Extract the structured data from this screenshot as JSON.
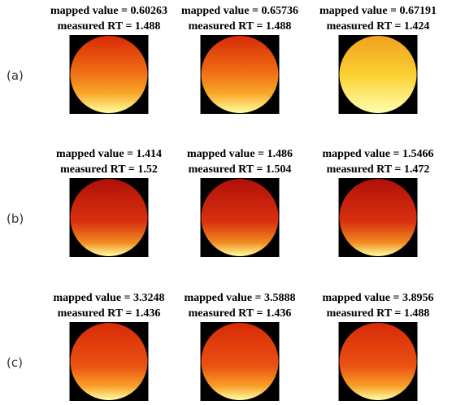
{
  "rows": [
    {
      "label": "(a)",
      "panels": [
        {
          "title": "mapped value = 0.60263",
          "subtitle": "measured RT = 1.488"
        },
        {
          "title": "mapped value = 0.65736",
          "subtitle": "measured RT = 1.488"
        },
        {
          "title": "mapped value = 0.67191",
          "subtitle": "measured RT = 1.424"
        }
      ]
    },
    {
      "label": "(b)",
      "panels": [
        {
          "title": "mapped value = 1.414",
          "subtitle": "measured RT = 1.52"
        },
        {
          "title": "mapped value = 1.486",
          "subtitle": "measured RT = 1.504"
        },
        {
          "title": "mapped value = 1.5466",
          "subtitle": "measured RT = 1.472"
        }
      ]
    },
    {
      "label": "(c)",
      "panels": [
        {
          "title": "mapped value = 3.3248",
          "subtitle": "measured RT = 1.436"
        },
        {
          "title": "mapped value = 3.5888",
          "subtitle": "measured RT = 1.436"
        },
        {
          "title": "mapped value = 3.8956",
          "subtitle": "measured RT = 1.488"
        }
      ]
    }
  ]
}
